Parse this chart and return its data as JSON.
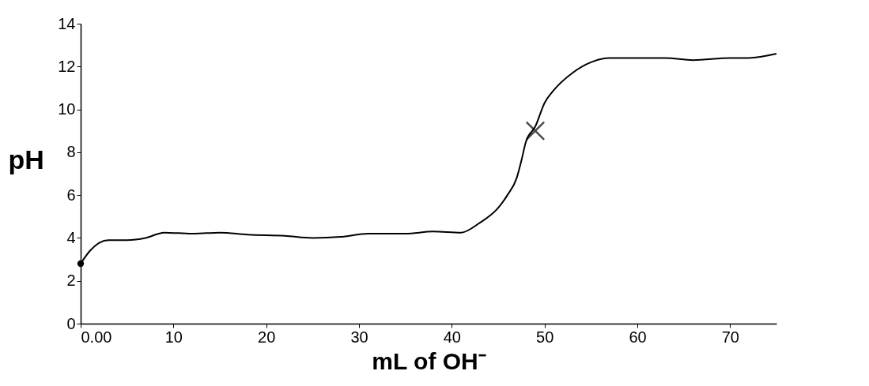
{
  "chart_data": {
    "type": "line",
    "xlabel": "mL of OH⁻",
    "ylabel": "pH",
    "xlim": [
      0,
      75
    ],
    "ylim": [
      0,
      14
    ],
    "xticks": [
      {
        "value": 0,
        "label": "0.00"
      },
      10,
      20,
      30,
      40,
      50,
      60,
      70
    ],
    "yticks": [
      0,
      2,
      4,
      6,
      8,
      10,
      12,
      14
    ],
    "grid": false,
    "series": [
      {
        "color": "#000000",
        "marker": "none",
        "line_style": "solid",
        "x": [
          0,
          1,
          3,
          5,
          7,
          9,
          12,
          15,
          18,
          22,
          25,
          28,
          31,
          35,
          38,
          41,
          43,
          45,
          46,
          47,
          47.5,
          48,
          49,
          50,
          51,
          53,
          55,
          57,
          60,
          63,
          66,
          70,
          72,
          75
        ],
        "values": [
          2.8,
          3.4,
          3.9,
          3.9,
          4.0,
          4.25,
          4.2,
          4.25,
          4.15,
          4.1,
          4.0,
          4.05,
          4.2,
          4.2,
          4.3,
          4.25,
          4.7,
          5.4,
          6.0,
          6.8,
          7.6,
          8.5,
          9.2,
          10.3,
          10.9,
          11.7,
          12.2,
          12.4,
          12.4,
          12.4,
          12.3,
          12.4,
          12.4,
          12.6
        ]
      },
      {
        "type": "scatter",
        "color": "#000000",
        "marker": "cross",
        "x": [
          49
        ],
        "values": [
          9
        ]
      },
      {
        "type": "scatter",
        "color": "#000000",
        "marker": "circle",
        "x": [
          0
        ],
        "values": [
          2.8
        ]
      }
    ]
  }
}
